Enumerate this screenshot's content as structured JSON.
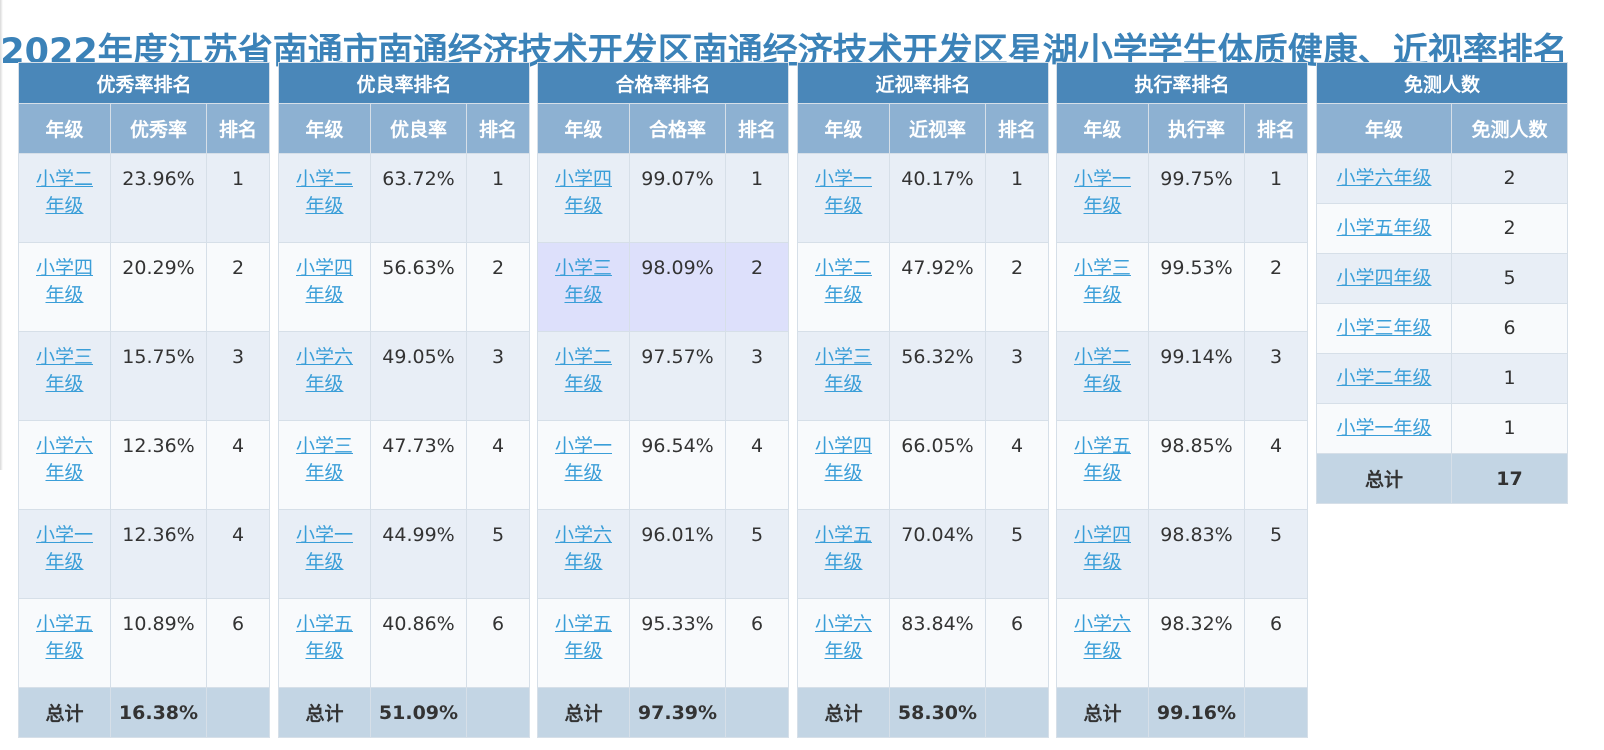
{
  "title": "2022年度江苏省南通市南通经济技术开发区南通经济技术开发区星湖小学学生体质健康、近视率排名",
  "col_grade": "年级",
  "col_rank": "排名",
  "total_label": "总计",
  "tables": [
    {
      "header": "优秀率排名",
      "metric": "优秀率",
      "rows": [
        {
          "grade": "小学二年级",
          "value": "23.96%",
          "rank": "1"
        },
        {
          "grade": "小学四年级",
          "value": "20.29%",
          "rank": "2"
        },
        {
          "grade": "小学三年级",
          "value": "15.75%",
          "rank": "3"
        },
        {
          "grade": "小学六年级",
          "value": "12.36%",
          "rank": "4"
        },
        {
          "grade": "小学一年级",
          "value": "12.36%",
          "rank": "4"
        },
        {
          "grade": "小学五年级",
          "value": "10.89%",
          "rank": "6"
        }
      ],
      "total": "16.38%"
    },
    {
      "header": "优良率排名",
      "metric": "优良率",
      "rows": [
        {
          "grade": "小学二年级",
          "value": "63.72%",
          "rank": "1"
        },
        {
          "grade": "小学四年级",
          "value": "56.63%",
          "rank": "2"
        },
        {
          "grade": "小学六年级",
          "value": "49.05%",
          "rank": "3"
        },
        {
          "grade": "小学三年级",
          "value": "47.73%",
          "rank": "4"
        },
        {
          "grade": "小学一年级",
          "value": "44.99%",
          "rank": "5"
        },
        {
          "grade": "小学五年级",
          "value": "40.86%",
          "rank": "6"
        }
      ],
      "total": "51.09%"
    },
    {
      "header": "合格率排名",
      "metric": "合格率",
      "rows": [
        {
          "grade": "小学四年级",
          "value": "99.07%",
          "rank": "1"
        },
        {
          "grade": "小学三年级",
          "value": "98.09%",
          "rank": "2",
          "highlight": true
        },
        {
          "grade": "小学二年级",
          "value": "97.57%",
          "rank": "3"
        },
        {
          "grade": "小学一年级",
          "value": "96.54%",
          "rank": "4"
        },
        {
          "grade": "小学六年级",
          "value": "96.01%",
          "rank": "5"
        },
        {
          "grade": "小学五年级",
          "value": "95.33%",
          "rank": "6"
        }
      ],
      "total": "97.39%"
    },
    {
      "header": "近视率排名",
      "metric": "近视率",
      "rows": [
        {
          "grade": "小学一年级",
          "value": "40.17%",
          "rank": "1"
        },
        {
          "grade": "小学二年级",
          "value": "47.92%",
          "rank": "2"
        },
        {
          "grade": "小学三年级",
          "value": "56.32%",
          "rank": "3"
        },
        {
          "grade": "小学四年级",
          "value": "66.05%",
          "rank": "4"
        },
        {
          "grade": "小学五年级",
          "value": "70.04%",
          "rank": "5"
        },
        {
          "grade": "小学六年级",
          "value": "83.84%",
          "rank": "6"
        }
      ],
      "total": "58.30%"
    },
    {
      "header": "执行率排名",
      "metric": "执行率",
      "rows": [
        {
          "grade": "小学一年级",
          "value": "99.75%",
          "rank": "1"
        },
        {
          "grade": "小学三年级",
          "value": "99.53%",
          "rank": "2"
        },
        {
          "grade": "小学二年级",
          "value": "99.14%",
          "rank": "3"
        },
        {
          "grade": "小学五年级",
          "value": "98.85%",
          "rank": "4"
        },
        {
          "grade": "小学四年级",
          "value": "98.83%",
          "rank": "5"
        },
        {
          "grade": "小学六年级",
          "value": "98.32%",
          "rank": "6"
        }
      ],
      "total": "99.16%"
    }
  ],
  "exempt": {
    "header": "免测人数",
    "col_count": "免测人数",
    "rows": [
      {
        "grade": "小学六年级",
        "count": "2"
      },
      {
        "grade": "小学五年级",
        "count": "2"
      },
      {
        "grade": "小学四年级",
        "count": "5"
      },
      {
        "grade": "小学三年级",
        "count": "6"
      },
      {
        "grade": "小学二年级",
        "count": "1"
      },
      {
        "grade": "小学一年级",
        "count": "1"
      }
    ],
    "total": "17"
  },
  "colors": {
    "header": "#4a87b9",
    "subheader": "#8db1d2",
    "row_odd": "#e8eef6",
    "row_even": "#f8fafc",
    "row_highlight": "#dde0fb",
    "total_row": "#c3d5e4",
    "link": "#3a9ed8",
    "title": "#3b82b8"
  }
}
